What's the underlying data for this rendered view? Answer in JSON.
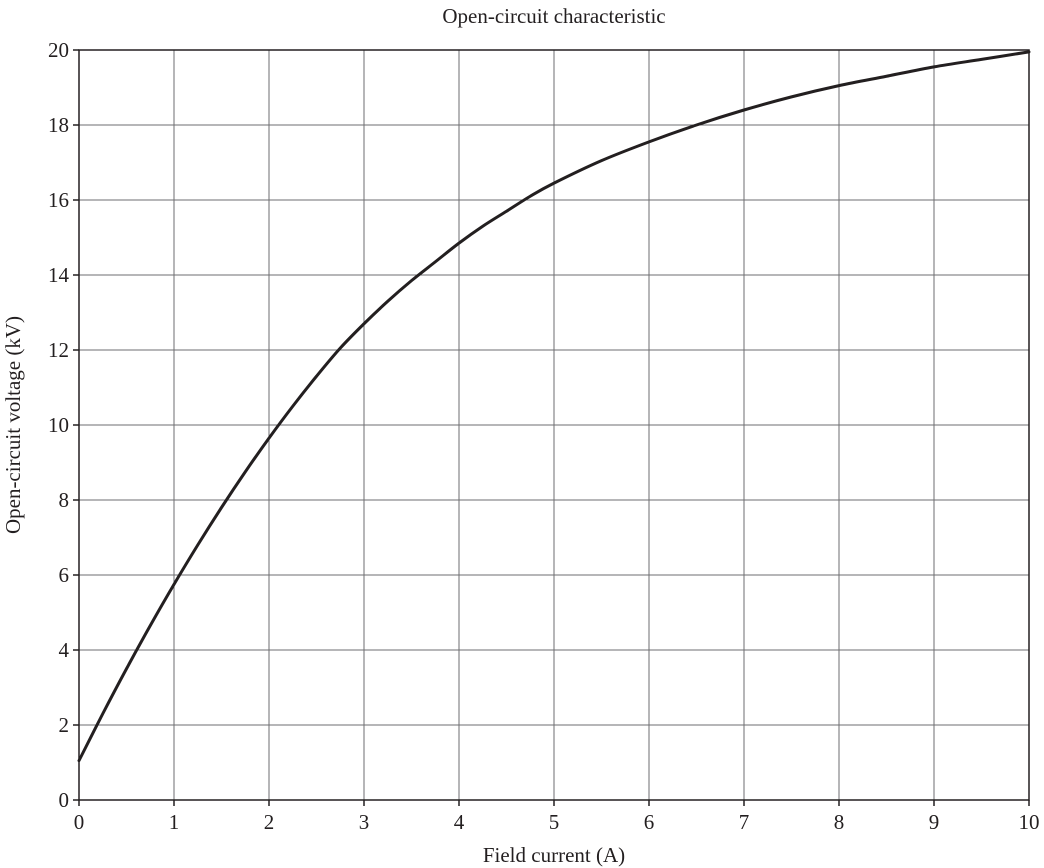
{
  "chart_data": {
    "type": "line",
    "title": "Open-circuit characteristic",
    "xlabel": "Field current (A)",
    "ylabel": "Open-circuit voltage (kV)",
    "xlim": [
      0,
      10
    ],
    "ylim": [
      0,
      20
    ],
    "xticks": [
      0,
      1,
      2,
      3,
      4,
      5,
      6,
      7,
      8,
      9,
      10
    ],
    "yticks": [
      0,
      2,
      4,
      6,
      8,
      10,
      12,
      14,
      16,
      18,
      20
    ],
    "xtick_labels": [
      "0",
      "1",
      "2",
      "3",
      "4",
      "5",
      "6",
      "7",
      "8",
      "9",
      "10"
    ],
    "ytick_labels": [
      "0",
      "2",
      "4",
      "6",
      "8",
      "10",
      "12",
      "14",
      "16",
      "18",
      "20"
    ],
    "grid": true,
    "legend": "none",
    "colors": {
      "line": "#231f20",
      "grid": "#6d6e71",
      "frame": "#231f20"
    },
    "series": [
      {
        "x": [
          0,
          0.25,
          0.5,
          0.75,
          1,
          1.25,
          1.5,
          1.75,
          2,
          2.25,
          2.5,
          2.75,
          3,
          3.25,
          3.5,
          3.75,
          4,
          4.25,
          4.5,
          4.75,
          5,
          5.5,
          6,
          6.5,
          7,
          7.5,
          8,
          8.5,
          9,
          9.5,
          10
        ],
        "y": [
          1.05,
          2.3,
          3.5,
          4.65,
          5.75,
          6.8,
          7.8,
          8.75,
          9.65,
          10.5,
          11.3,
          12.05,
          12.7,
          13.3,
          13.85,
          14.35,
          14.85,
          15.3,
          15.7,
          16.1,
          16.45,
          17.05,
          17.55,
          18.0,
          18.4,
          18.75,
          19.05,
          19.3,
          19.55,
          19.75,
          19.95
        ]
      }
    ]
  }
}
